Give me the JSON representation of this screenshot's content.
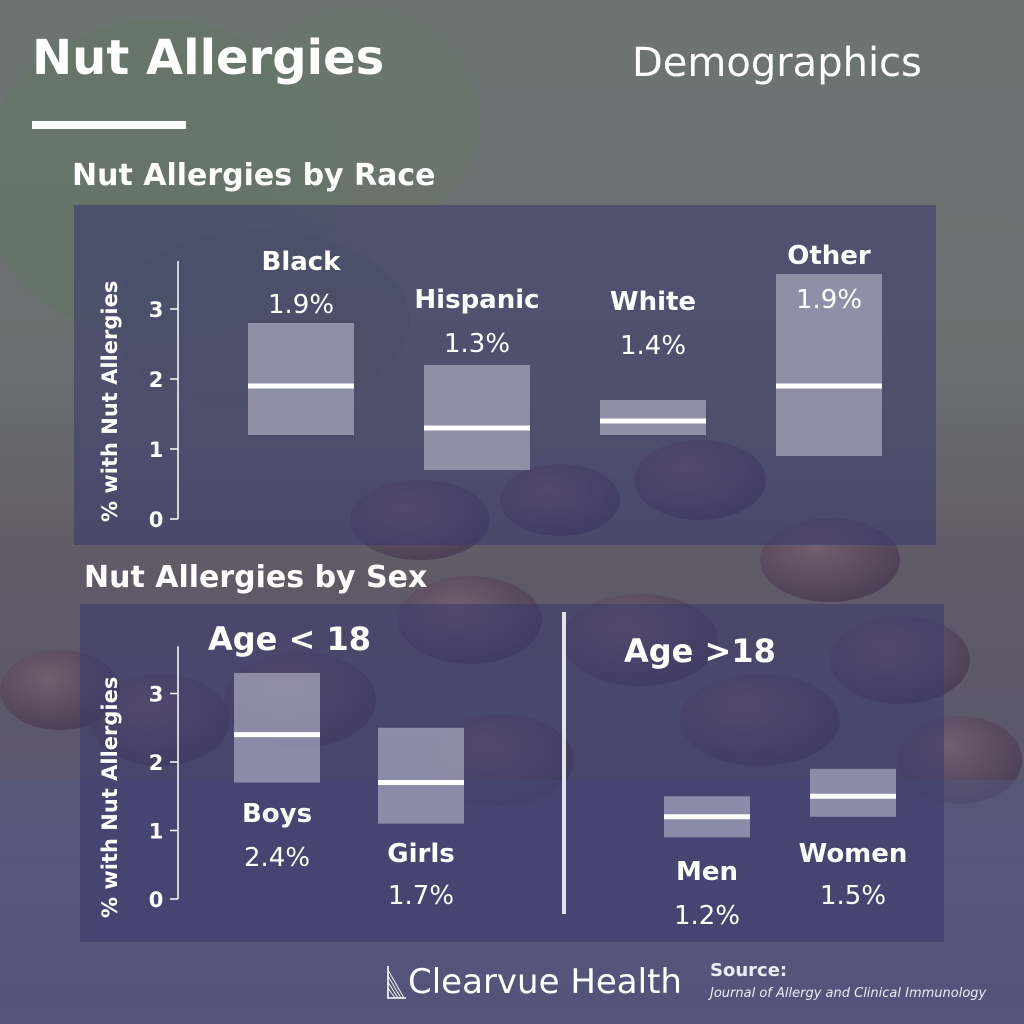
{
  "header": {
    "title": "Nut Allergies",
    "subtitle": "Demographics"
  },
  "race_section": {
    "title": "Nut Allergies by Race",
    "ylabel": "% with Nut Allergies"
  },
  "sex_section": {
    "title": "Nut Allergies by Sex",
    "ylabel": "% with Nut Allergies",
    "group_left": "Age < 18",
    "group_right": "Age >18"
  },
  "chart_data": [
    {
      "type": "bar",
      "title": "Nut Allergies by Race",
      "ylabel": "% with Nut Allergies",
      "ylim": [
        0,
        3.6
      ],
      "yticks": [
        0,
        1,
        2,
        3
      ],
      "categories": [
        "Black",
        "Hispanic",
        "White",
        "Other"
      ],
      "values": [
        1.9,
        1.3,
        1.4,
        1.9
      ],
      "value_labels": [
        "1.9%",
        "1.3%",
        "1.4%",
        "1.9%"
      ],
      "ranges": [
        [
          1.2,
          2.8
        ],
        [
          0.7,
          2.2
        ],
        [
          1.2,
          1.7
        ],
        [
          0.9,
          3.5
        ]
      ]
    },
    {
      "type": "bar",
      "title": "Nut Allergies by Sex",
      "ylabel": "% with Nut Allergies",
      "ylim": [
        0,
        3.6
      ],
      "yticks": [
        0,
        1,
        2,
        3
      ],
      "categories": [
        "Boys",
        "Girls",
        "Men",
        "Women"
      ],
      "groups": [
        "Age < 18",
        "Age < 18",
        "Age >18",
        "Age >18"
      ],
      "values": [
        2.4,
        1.7,
        1.2,
        1.5
      ],
      "value_labels": [
        "2.4%",
        "1.7%",
        "1.2%",
        "1.5%"
      ],
      "ranges": [
        [
          1.7,
          3.3
        ],
        [
          1.1,
          2.5
        ],
        [
          0.9,
          1.5
        ],
        [
          1.2,
          1.9
        ]
      ]
    }
  ],
  "footer": {
    "brand": "Clearvue Health",
    "source_label": "Source:",
    "source_text": "Journal of Allergy and Clinical Immunology"
  },
  "colors": {
    "panel": "#3a3a6c",
    "bar_fill": "#b7b7cc",
    "median_line": "#ffffff",
    "text": "#ffffff"
  }
}
